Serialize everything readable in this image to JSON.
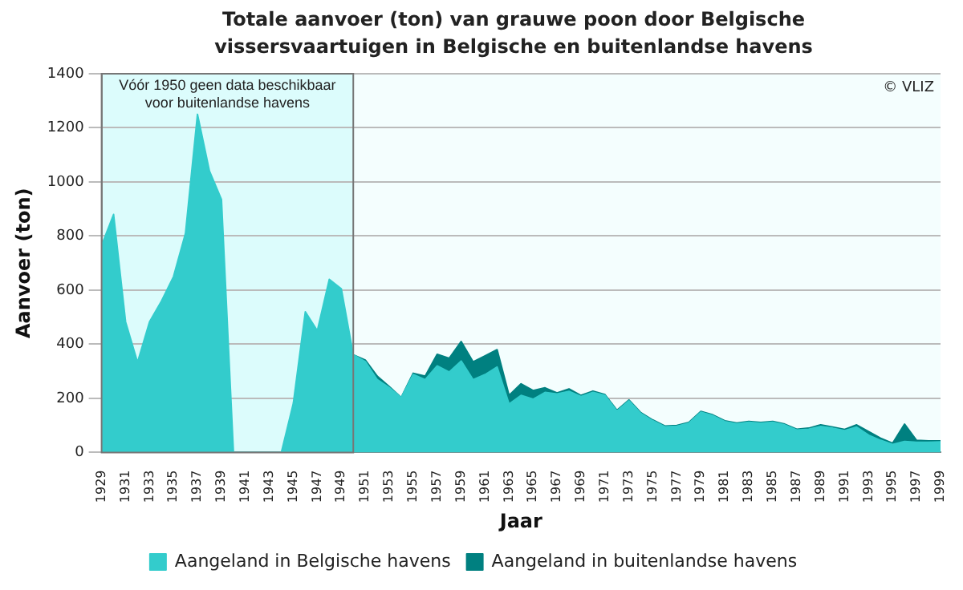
{
  "chart_data": {
    "type": "area",
    "title": "Totale aanvoer (ton) van grauwe poon door Belgische vissersvaartuigen in Belgische en buitenlandse havens",
    "xlabel": "Jaar",
    "ylabel": "Aanvoer (ton)",
    "x": [
      1929,
      1930,
      1931,
      1932,
      1933,
      1934,
      1935,
      1936,
      1937,
      1938,
      1939,
      1940,
      1941,
      1942,
      1943,
      1944,
      1945,
      1946,
      1947,
      1948,
      1949,
      1950,
      1951,
      1952,
      1953,
      1954,
      1955,
      1956,
      1957,
      1958,
      1959,
      1960,
      1961,
      1962,
      1963,
      1964,
      1965,
      1966,
      1967,
      1968,
      1969,
      1970,
      1971,
      1972,
      1973,
      1974,
      1975,
      1976,
      1977,
      1978,
      1979,
      1980,
      1981,
      1982,
      1983,
      1984,
      1985,
      1986,
      1987,
      1988,
      1989,
      1990,
      1991,
      1992,
      1993,
      1994,
      1995,
      1996,
      1997,
      1998,
      1999
    ],
    "stacked": true,
    "series": [
      {
        "name": "Aangeland in Belgische havens",
        "color": "#33cccc",
        "values": [
          765,
          880,
          483,
          333,
          483,
          560,
          650,
          810,
          1250,
          1040,
          935,
          0,
          0,
          0,
          0,
          0,
          182,
          520,
          450,
          640,
          605,
          361,
          336,
          269,
          240,
          203,
          288,
          269,
          320,
          297,
          338,
          269,
          288,
          316,
          179,
          211,
          197,
          222,
          216,
          226,
          207,
          222,
          211,
          153,
          191,
          144,
          117,
          95,
          97,
          108,
          149,
          136,
          114,
          106,
          112,
          108,
          112,
          102,
          83,
          86,
          96,
          90,
          81,
          94,
          64,
          45,
          30,
          41,
          38,
          38,
          39
        ]
      },
      {
        "name": "Aangeland in buitenlandse havens",
        "color": "#008080",
        "values": [
          null,
          null,
          null,
          null,
          null,
          null,
          null,
          null,
          null,
          null,
          null,
          null,
          null,
          null,
          null,
          null,
          null,
          null,
          null,
          null,
          null,
          0,
          6,
          13,
          4,
          0,
          5,
          13,
          43,
          51,
          72,
          66,
          69,
          64,
          32,
          43,
          32,
          17,
          4,
          9,
          4,
          5,
          3,
          3,
          3,
          3,
          3,
          3,
          3,
          3,
          3,
          3,
          3,
          3,
          3,
          3,
          3,
          3,
          3,
          4,
          6,
          4,
          4,
          8,
          13,
          8,
          4,
          64,
          7,
          5,
          4
        ]
      }
    ],
    "xlim": [
      1929,
      1999
    ],
    "xticks": [
      1929,
      1931,
      1933,
      1935,
      1937,
      1939,
      1941,
      1943,
      1945,
      1947,
      1949,
      1951,
      1953,
      1955,
      1957,
      1959,
      1961,
      1963,
      1965,
      1967,
      1969,
      1971,
      1973,
      1975,
      1977,
      1979,
      1981,
      1983,
      1985,
      1987,
      1989,
      1991,
      1993,
      1995,
      1997,
      1999
    ],
    "ylim": [
      0,
      1400
    ],
    "yticks": [
      0,
      200,
      400,
      600,
      800,
      1000,
      1200,
      1400
    ],
    "bands": [
      {
        "axis": "x",
        "from": 1929,
        "to": 1950,
        "label": "Vóór 1950 geen data beschikbaar voor buitenlandse havens",
        "color": "#dcfcfc"
      }
    ],
    "annotations": [
      "© VLIZ"
    ],
    "grid": "y",
    "legend": "bottom",
    "marker": "none"
  }
}
